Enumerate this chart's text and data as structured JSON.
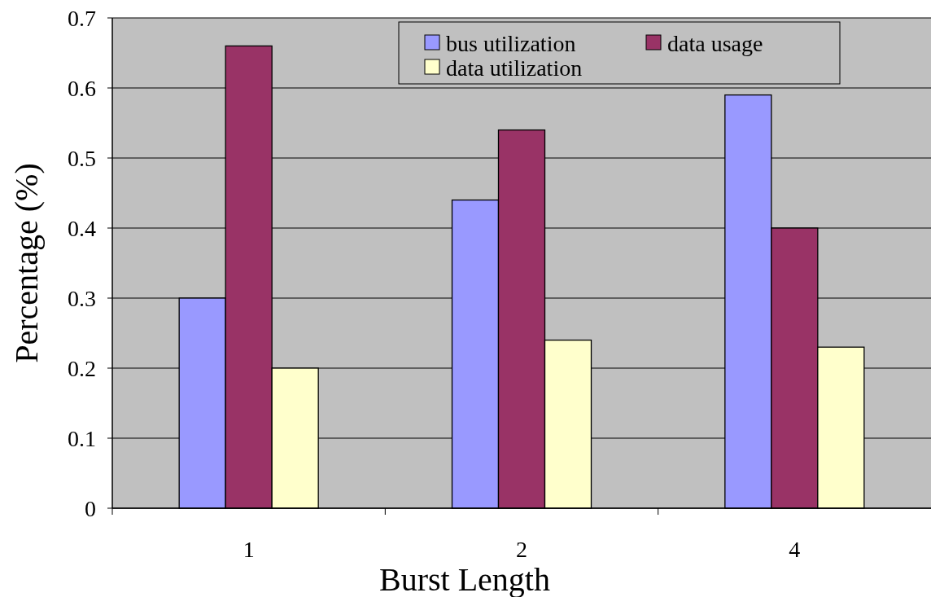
{
  "chart_data": {
    "type": "bar",
    "xlabel": "Burst Length",
    "ylabel": "Percentage (%)",
    "categories": [
      "1",
      "2",
      "4"
    ],
    "series": [
      {
        "name": "bus utilization",
        "color": "#9999ff",
        "values": [
          0.3,
          0.44,
          0.59
        ]
      },
      {
        "name": "data usage",
        "color": "#993366",
        "values": [
          0.66,
          0.54,
          0.4
        ]
      },
      {
        "name": "data utilization",
        "color": "#ffffcc",
        "values": [
          0.2,
          0.24,
          0.23
        ]
      }
    ],
    "ylim": [
      0,
      0.7
    ],
    "yticks": [
      0,
      0.1,
      0.2,
      0.3,
      0.4,
      0.5,
      0.6,
      0.7
    ],
    "grid": "y",
    "legend": "top right"
  }
}
